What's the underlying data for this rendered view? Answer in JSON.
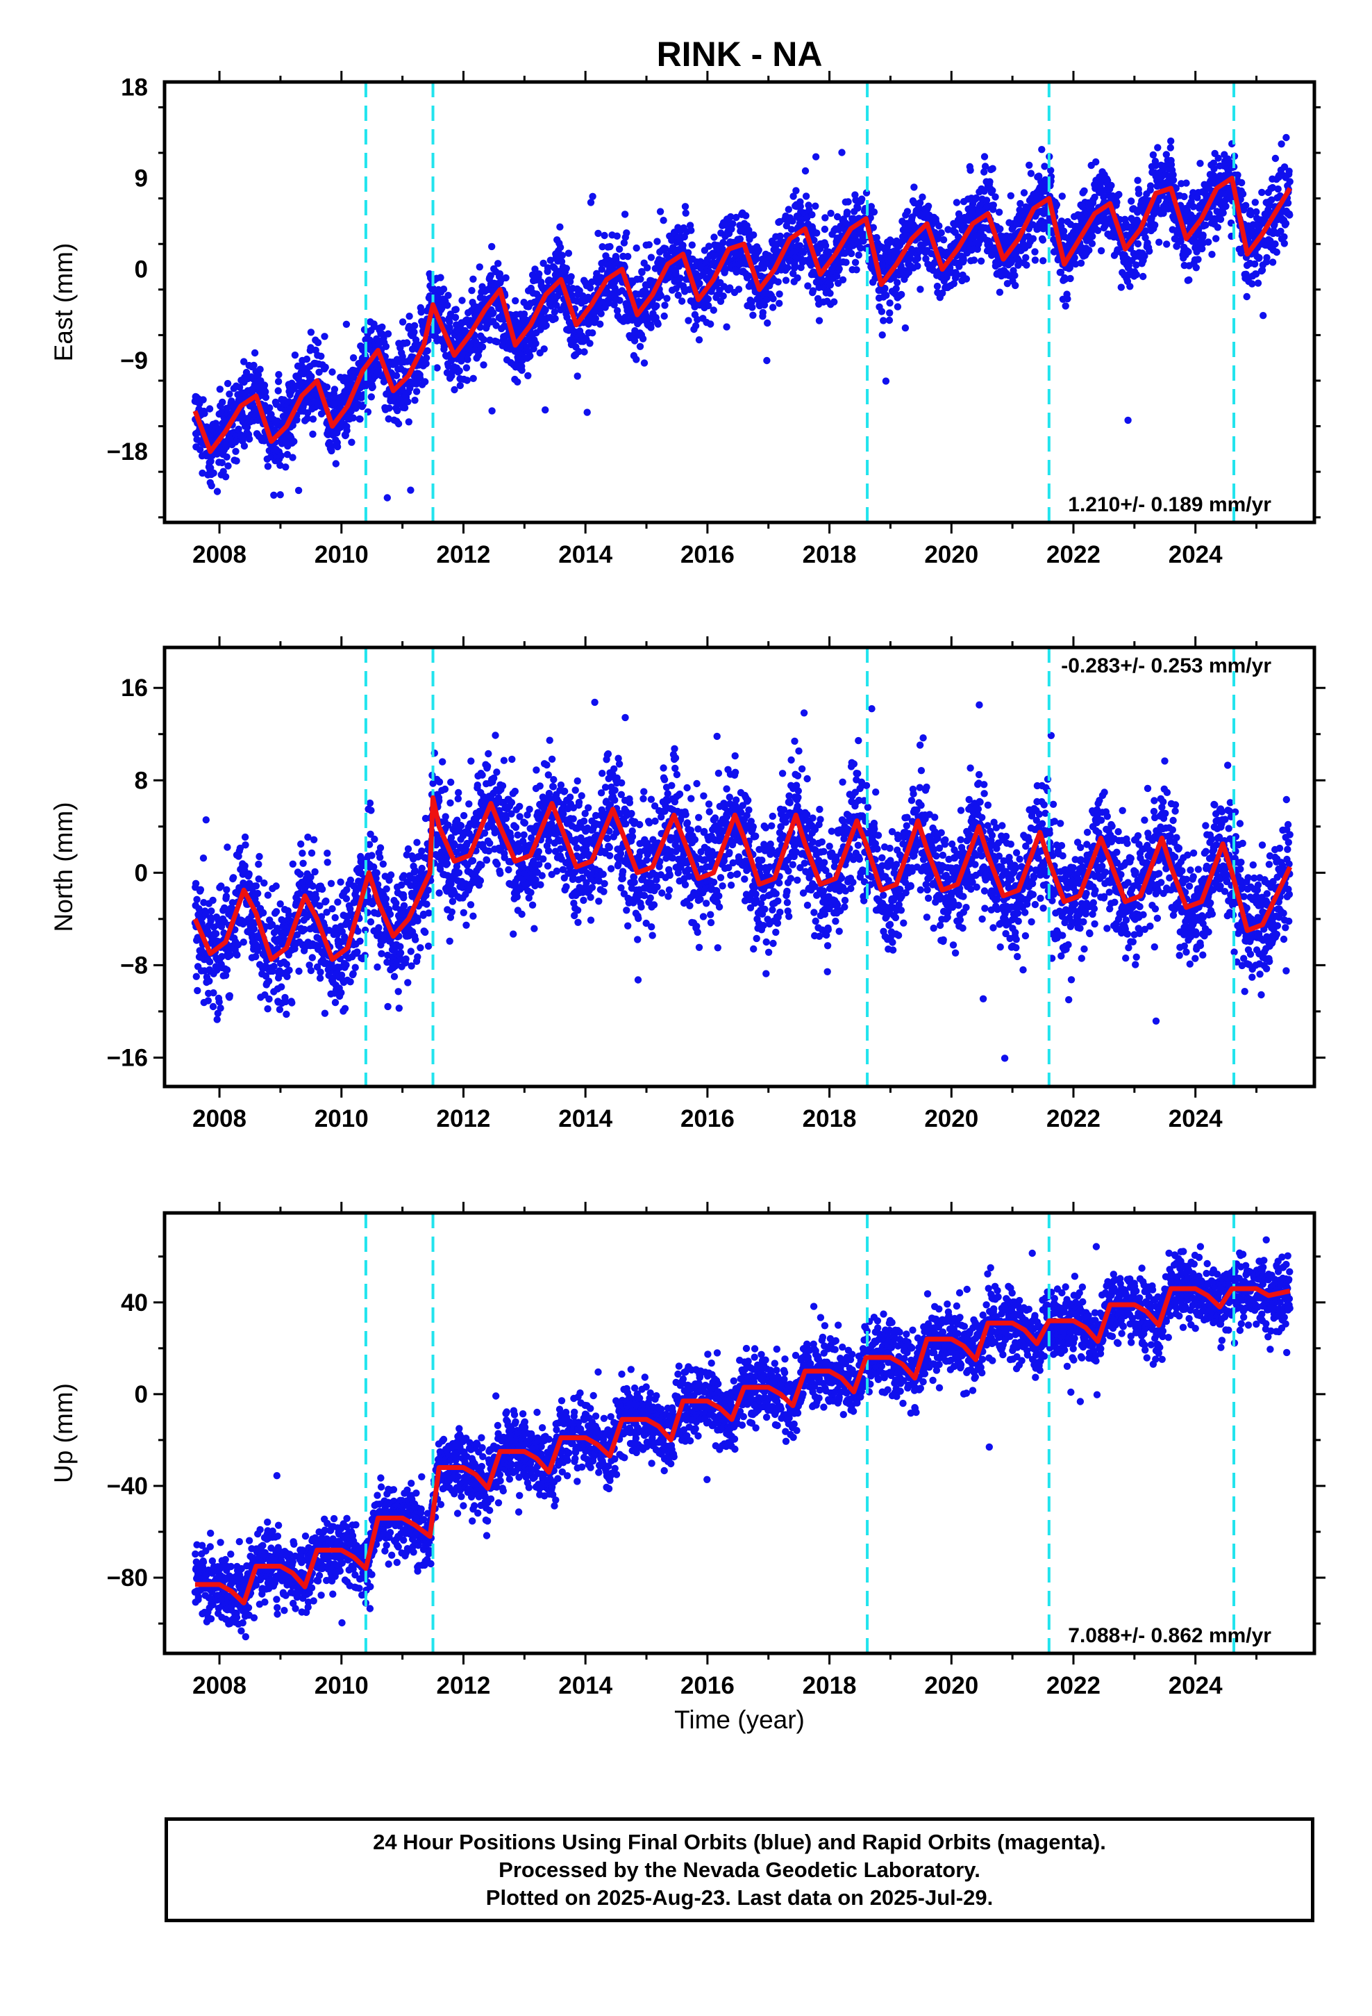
{
  "chart_data": [
    {
      "type": "scatter",
      "title": "RINK - NA",
      "ylabel": "East (mm)",
      "xlabel": "",
      "xlim": [
        2007.1,
        2025.95
      ],
      "ylim": [
        -25,
        18.5
      ],
      "yticks": [
        18,
        9,
        0,
        -9,
        -18
      ],
      "xticks": [
        2008,
        2010,
        2012,
        2014,
        2016,
        2018,
        2020,
        2022,
        2024
      ],
      "grid": false,
      "annotation": "1.210+/- 0.189 mm/yr",
      "annotation_position": "bottom-right",
      "events_dashed_lines": [
        2010.4,
        2011.5,
        2018.62,
        2021.6,
        2024.63
      ],
      "colors": {
        "points": "#1010ee",
        "model": "#ee1111",
        "events": "#22e4ee"
      },
      "model_curve": {
        "x": [
          2007.6,
          2007.85,
          2008.1,
          2008.35,
          2008.6,
          2008.85,
          2009.1,
          2009.35,
          2009.6,
          2009.85,
          2010.1,
          2010.35,
          2010.6,
          2010.85,
          2011.1,
          2011.35,
          2011.5,
          2011.6,
          2011.85,
          2012.1,
          2012.35,
          2012.6,
          2012.85,
          2013.1,
          2013.35,
          2013.6,
          2013.85,
          2014.1,
          2014.35,
          2014.6,
          2014.85,
          2015.1,
          2015.35,
          2015.6,
          2015.85,
          2016.1,
          2016.35,
          2016.6,
          2016.85,
          2017.1,
          2017.35,
          2017.6,
          2017.85,
          2018.1,
          2018.35,
          2018.6,
          2018.85,
          2019.1,
          2019.35,
          2019.6,
          2019.85,
          2020.1,
          2020.35,
          2020.6,
          2020.85,
          2021.1,
          2021.35,
          2021.6,
          2021.85,
          2022.1,
          2022.35,
          2022.6,
          2022.85,
          2023.1,
          2023.35,
          2023.6,
          2023.85,
          2024.1,
          2024.35,
          2024.6,
          2024.85,
          2025.1,
          2025.35,
          2025.55
        ],
        "y": [
          -14,
          -18,
          -16,
          -13.5,
          -12.5,
          -17,
          -15.5,
          -12.5,
          -11,
          -15.5,
          -13.5,
          -10,
          -8,
          -12,
          -10.5,
          -7.5,
          -3.5,
          -5,
          -8.5,
          -6.5,
          -4,
          -2,
          -7.5,
          -5.5,
          -2.5,
          -1,
          -5.5,
          -3.5,
          -1,
          0,
          -4.5,
          -2.5,
          0.5,
          1.5,
          -3,
          -1,
          2,
          2.5,
          -2,
          0,
          3,
          4,
          -0.5,
          1.5,
          4,
          5,
          -1.5,
          0.5,
          3,
          4.5,
          0,
          2,
          4.5,
          5.5,
          1,
          3,
          6,
          7,
          0.5,
          3,
          5.5,
          6.5,
          2,
          4,
          7.5,
          8,
          3,
          5,
          8,
          9,
          1.5,
          3.5,
          6,
          8
        ]
      }
    },
    {
      "type": "scatter",
      "title": "",
      "ylabel": "North (mm)",
      "xlabel": "",
      "xlim": [
        2007.1,
        2025.95
      ],
      "ylim": [
        -18.5,
        19.5
      ],
      "yticks": [
        16,
        8,
        0,
        -8,
        -16
      ],
      "xticks": [
        2008,
        2010,
        2012,
        2014,
        2016,
        2018,
        2020,
        2022,
        2024
      ],
      "grid": false,
      "annotation": "-0.283+/- 0.253 mm/yr",
      "annotation_position": "top-right",
      "events_dashed_lines": [
        2010.4,
        2011.5,
        2018.62,
        2021.6,
        2024.63
      ],
      "colors": {
        "points": "#1010ee",
        "model": "#ee1111",
        "events": "#22e4ee"
      },
      "model_curve": {
        "x": [
          2007.6,
          2007.85,
          2008.1,
          2008.4,
          2008.6,
          2008.85,
          2009.1,
          2009.4,
          2009.6,
          2009.85,
          2010.1,
          2010.45,
          2010.6,
          2010.85,
          2011.1,
          2011.45,
          2011.5,
          2011.6,
          2011.85,
          2012.1,
          2012.45,
          2012.6,
          2012.85,
          2013.1,
          2013.45,
          2013.6,
          2013.85,
          2014.1,
          2014.45,
          2014.6,
          2014.85,
          2015.1,
          2015.45,
          2015.6,
          2015.85,
          2016.1,
          2016.45,
          2016.6,
          2016.85,
          2017.1,
          2017.45,
          2017.6,
          2017.85,
          2018.1,
          2018.45,
          2018.6,
          2018.85,
          2019.1,
          2019.45,
          2019.6,
          2019.85,
          2020.1,
          2020.45,
          2020.6,
          2020.85,
          2021.1,
          2021.45,
          2021.6,
          2021.85,
          2022.1,
          2022.45,
          2022.6,
          2022.85,
          2023.1,
          2023.45,
          2023.6,
          2023.85,
          2024.1,
          2024.45,
          2024.6,
          2024.85,
          2025.1,
          2025.55
        ],
        "y": [
          -4,
          -7,
          -6,
          -1.5,
          -3.5,
          -7.5,
          -6.5,
          -2,
          -4,
          -7.5,
          -6.5,
          0,
          -2.5,
          -5.5,
          -4,
          0,
          6.5,
          4,
          1,
          1.5,
          6,
          4,
          1,
          1.5,
          6,
          4,
          0.5,
          1,
          5.5,
          3.5,
          0,
          0.5,
          5,
          3,
          -0.5,
          0,
          5,
          3,
          -1,
          -0.5,
          5,
          2.5,
          -1,
          -0.5,
          4.5,
          2.5,
          -1.5,
          -1,
          4.5,
          2,
          -1.5,
          -1,
          4,
          1.5,
          -2,
          -1.5,
          3.5,
          1,
          -2.5,
          -2,
          3,
          1,
          -2.5,
          -2,
          3,
          0.5,
          -3,
          -2.5,
          2.5,
          0,
          -5,
          -4.5,
          0.5
        ]
      }
    },
    {
      "type": "scatter",
      "title": "",
      "ylabel": "Up (mm)",
      "xlabel": "Time (year)",
      "xlim": [
        2007.1,
        2025.95
      ],
      "ylim": [
        -113,
        79
      ],
      "yticks": [
        40,
        0,
        -40,
        -80
      ],
      "xticks": [
        2008,
        2010,
        2012,
        2014,
        2016,
        2018,
        2020,
        2022,
        2024
      ],
      "grid": false,
      "annotation": "7.088+/- 0.862 mm/yr",
      "annotation_position": "bottom-right",
      "events_dashed_lines": [
        2010.4,
        2011.5,
        2018.62,
        2021.6,
        2024.63
      ],
      "colors": {
        "points": "#1010ee",
        "model": "#ee1111",
        "events": "#22e4ee"
      },
      "model_curve": {
        "x": [
          2007.6,
          2008.0,
          2008.2,
          2008.4,
          2008.6,
          2009.0,
          2009.2,
          2009.4,
          2009.6,
          2010.0,
          2010.2,
          2010.4,
          2010.6,
          2011.0,
          2011.2,
          2011.45,
          2011.6,
          2012.0,
          2012.2,
          2012.4,
          2012.6,
          2013.0,
          2013.2,
          2013.4,
          2013.6,
          2014.0,
          2014.2,
          2014.4,
          2014.6,
          2015.0,
          2015.2,
          2015.4,
          2015.6,
          2016.0,
          2016.2,
          2016.4,
          2016.6,
          2017.0,
          2017.2,
          2017.4,
          2017.6,
          2018.0,
          2018.2,
          2018.4,
          2018.6,
          2019.0,
          2019.2,
          2019.4,
          2019.6,
          2020.0,
          2020.2,
          2020.4,
          2020.6,
          2021.0,
          2021.2,
          2021.4,
          2021.6,
          2022.0,
          2022.2,
          2022.4,
          2022.6,
          2023.0,
          2023.2,
          2023.4,
          2023.6,
          2024.0,
          2024.2,
          2024.4,
          2024.6,
          2025.0,
          2025.2,
          2025.55
        ],
        "y": [
          -83,
          -83,
          -86,
          -91,
          -75,
          -75,
          -78,
          -84,
          -68,
          -68,
          -71,
          -76,
          -54,
          -54,
          -57,
          -62,
          -32,
          -32,
          -35,
          -41,
          -25,
          -25,
          -28,
          -34,
          -19,
          -19,
          -22,
          -27,
          -11,
          -11,
          -14,
          -20,
          -3,
          -3,
          -6,
          -11,
          3,
          3,
          0,
          -5,
          10,
          10,
          7,
          1,
          16,
          16,
          13,
          7,
          24,
          24,
          21,
          15,
          31,
          31,
          28,
          22,
          32,
          32,
          29,
          23,
          39,
          39,
          36,
          30,
          46,
          46,
          43,
          38,
          46,
          46,
          43,
          45
        ]
      }
    }
  ],
  "footer": {
    "line1": "24 Hour Positions Using Final Orbits (blue) and Rapid Orbits (magenta).",
    "line2": "Processed by the Nevada Geodetic Laboratory.",
    "line3": "Plotted on 2025-Aug-23. Last data on 2025-Jul-29."
  }
}
